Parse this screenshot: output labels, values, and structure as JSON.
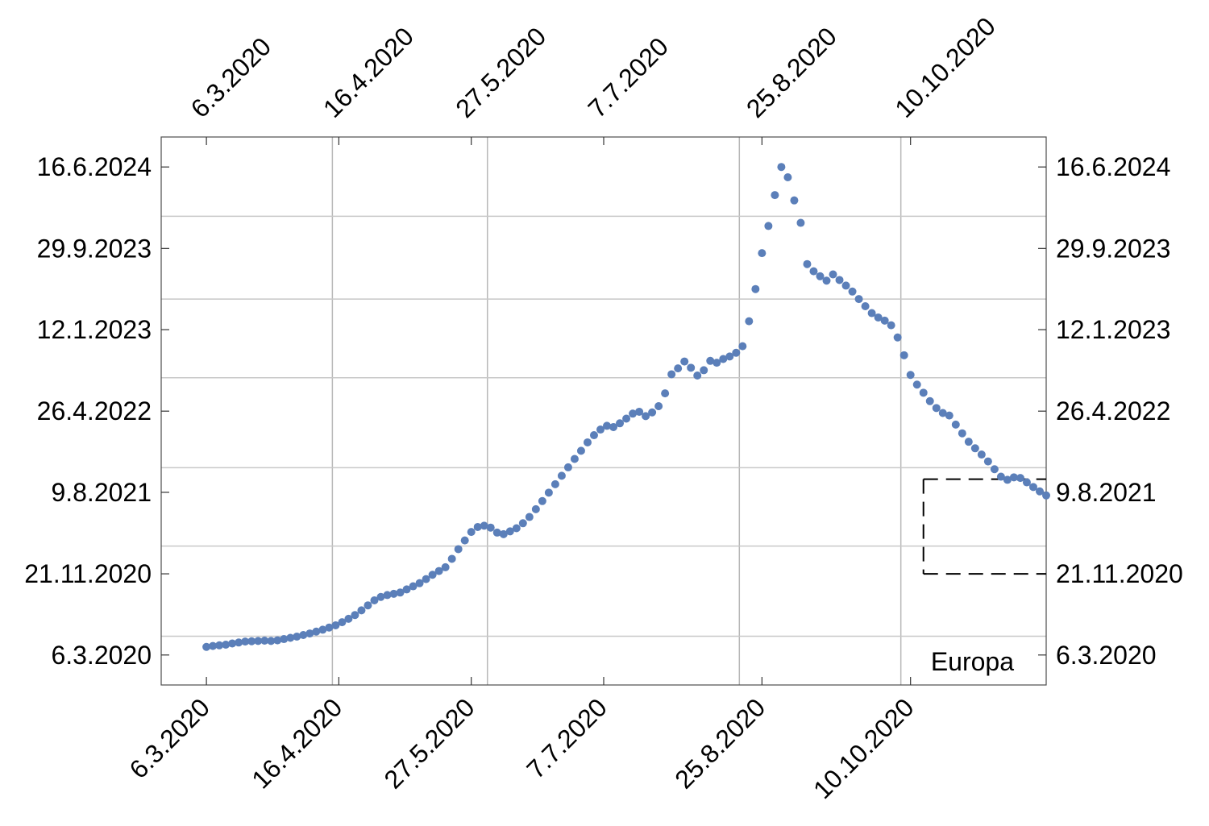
{
  "chart_data": {
    "type": "scatter",
    "title": "",
    "xlabel": "",
    "ylabel": "",
    "annotation": "Europa",
    "grid": true,
    "series_color": "#5b7fb9",
    "inset_box_color": "#000000",
    "x_axis": {
      "ticks": [
        "6.3.2020",
        "16.4.2020",
        "27.5.2020",
        "7.7.2020",
        "25.8.2020",
        "10.10.2020"
      ],
      "tick_dates": [
        "2020-03-06",
        "2020-04-16",
        "2020-05-27",
        "2020-07-07",
        "2020-08-25",
        "2020-10-10"
      ],
      "range": [
        "2020-02-21",
        "2020-11-21"
      ],
      "gridlines": [
        "2020-04-14",
        "2020-06-01",
        "2020-08-18",
        "2020-10-07"
      ]
    },
    "y_axis": {
      "ticks": [
        "6.3.2020",
        "21.11.2020",
        "9.8.2021",
        "26.4.2022",
        "12.1.2023",
        "29.9.2023",
        "16.6.2024"
      ],
      "tick_dates": [
        "2020-03-06",
        "2020-11-21",
        "2021-08-09",
        "2022-04-26",
        "2023-01-12",
        "2023-09-29",
        "2024-06-16"
      ],
      "range": [
        "2019-12-01",
        "2024-09-20"
      ],
      "gridlines": [
        "2020-05-05",
        "2021-02-18",
        "2021-10-27",
        "2022-08-11",
        "2023-04-20",
        "2024-01-10"
      ]
    },
    "inset_box": {
      "x_start": "2020-10-14",
      "y_range": [
        "2020-11-21",
        "2021-09-20"
      ]
    },
    "series": [
      {
        "points": [
          [
            "2020-03-06",
            "2020-04-01"
          ],
          [
            "2020-03-08",
            "2020-04-04"
          ],
          [
            "2020-03-10",
            "2020-04-06"
          ],
          [
            "2020-03-12",
            "2020-04-08"
          ],
          [
            "2020-03-14",
            "2020-04-12"
          ],
          [
            "2020-03-16",
            "2020-04-15"
          ],
          [
            "2020-03-18",
            "2020-04-18"
          ],
          [
            "2020-03-20",
            "2020-04-19"
          ],
          [
            "2020-03-22",
            "2020-04-20"
          ],
          [
            "2020-03-24",
            "2020-04-21"
          ],
          [
            "2020-03-26",
            "2020-04-20"
          ],
          [
            "2020-03-28",
            "2020-04-22"
          ],
          [
            "2020-03-30",
            "2020-04-26"
          ],
          [
            "2020-04-01",
            "2020-04-30"
          ],
          [
            "2020-04-03",
            "2020-05-04"
          ],
          [
            "2020-04-05",
            "2020-05-09"
          ],
          [
            "2020-04-07",
            "2020-05-14"
          ],
          [
            "2020-04-09",
            "2020-05-20"
          ],
          [
            "2020-04-11",
            "2020-05-26"
          ],
          [
            "2020-04-13",
            "2020-06-02"
          ],
          [
            "2020-04-15",
            "2020-06-09"
          ],
          [
            "2020-04-17",
            "2020-06-19"
          ],
          [
            "2020-04-19",
            "2020-06-30"
          ],
          [
            "2020-04-21",
            "2020-07-12"
          ],
          [
            "2020-04-23",
            "2020-07-27"
          ],
          [
            "2020-04-25",
            "2020-08-12"
          ],
          [
            "2020-04-27",
            "2020-08-28"
          ],
          [
            "2020-04-29",
            "2020-09-08"
          ],
          [
            "2020-05-01",
            "2020-09-14"
          ],
          [
            "2020-05-03",
            "2020-09-18"
          ],
          [
            "2020-05-05",
            "2020-09-22"
          ],
          [
            "2020-05-07",
            "2020-10-02"
          ],
          [
            "2020-05-09",
            "2020-10-12"
          ],
          [
            "2020-05-11",
            "2020-10-22"
          ],
          [
            "2020-05-13",
            "2020-11-04"
          ],
          [
            "2020-05-15",
            "2020-11-18"
          ],
          [
            "2020-05-17",
            "2020-11-30"
          ],
          [
            "2020-05-19",
            "2020-12-12"
          ],
          [
            "2020-05-21",
            "2021-01-08"
          ],
          [
            "2020-05-23",
            "2021-02-08"
          ],
          [
            "2020-05-25",
            "2021-03-08"
          ],
          [
            "2020-05-27",
            "2021-04-04"
          ],
          [
            "2020-05-29",
            "2021-04-20"
          ],
          [
            "2020-05-31",
            "2021-04-24"
          ],
          [
            "2020-06-02",
            "2021-04-18"
          ],
          [
            "2020-06-04",
            "2021-04-02"
          ],
          [
            "2020-06-06",
            "2021-03-28"
          ],
          [
            "2020-06-08",
            "2021-04-06"
          ],
          [
            "2020-06-10",
            "2021-04-16"
          ],
          [
            "2020-06-12",
            "2021-05-02"
          ],
          [
            "2020-06-14",
            "2021-05-22"
          ],
          [
            "2020-06-16",
            "2021-06-16"
          ],
          [
            "2020-06-18",
            "2021-07-12"
          ],
          [
            "2020-06-20",
            "2021-08-08"
          ],
          [
            "2020-06-22",
            "2021-09-04"
          ],
          [
            "2020-06-24",
            "2021-10-01"
          ],
          [
            "2020-06-26",
            "2021-10-28"
          ],
          [
            "2020-06-28",
            "2021-11-24"
          ],
          [
            "2020-06-30",
            "2021-12-20"
          ],
          [
            "2020-07-02",
            "2022-01-16"
          ],
          [
            "2020-07-04",
            "2022-02-08"
          ],
          [
            "2020-07-06",
            "2022-02-26"
          ],
          [
            "2020-07-08",
            "2022-03-10"
          ],
          [
            "2020-07-10",
            "2022-03-06"
          ],
          [
            "2020-07-12",
            "2022-03-18"
          ],
          [
            "2020-07-14",
            "2022-04-02"
          ],
          [
            "2020-07-16",
            "2022-04-18"
          ],
          [
            "2020-07-18",
            "2022-04-24"
          ],
          [
            "2020-07-20",
            "2022-04-10"
          ],
          [
            "2020-07-22",
            "2022-04-22"
          ],
          [
            "2020-07-24",
            "2022-05-12"
          ],
          [
            "2020-07-26",
            "2022-06-22"
          ],
          [
            "2020-07-28",
            "2022-08-22"
          ],
          [
            "2020-07-30",
            "2022-09-10"
          ],
          [
            "2020-08-01",
            "2022-10-02"
          ],
          [
            "2020-08-03",
            "2022-09-12"
          ],
          [
            "2020-08-05",
            "2022-08-18"
          ],
          [
            "2020-08-07",
            "2022-09-04"
          ],
          [
            "2020-08-09",
            "2022-10-04"
          ],
          [
            "2020-08-11",
            "2022-09-28"
          ],
          [
            "2020-08-13",
            "2022-10-10"
          ],
          [
            "2020-08-15",
            "2022-10-18"
          ],
          [
            "2020-08-17",
            "2022-10-30"
          ],
          [
            "2020-08-19",
            "2022-11-20"
          ],
          [
            "2020-08-21",
            "2023-02-08"
          ],
          [
            "2020-08-23",
            "2023-05-22"
          ],
          [
            "2020-08-25",
            "2023-09-14"
          ],
          [
            "2020-08-27",
            "2023-12-10"
          ],
          [
            "2020-08-29",
            "2024-03-18"
          ],
          [
            "2020-08-31",
            "2024-06-16"
          ],
          [
            "2020-09-02",
            "2024-05-14"
          ],
          [
            "2020-09-04",
            "2024-03-01"
          ],
          [
            "2020-09-06",
            "2023-12-20"
          ],
          [
            "2020-09-08",
            "2023-08-10"
          ],
          [
            "2020-09-10",
            "2023-07-18"
          ],
          [
            "2020-09-12",
            "2023-07-02"
          ],
          [
            "2020-09-14",
            "2023-06-18"
          ],
          [
            "2020-09-16",
            "2023-07-08"
          ],
          [
            "2020-09-18",
            "2023-06-20"
          ],
          [
            "2020-09-20",
            "2023-06-02"
          ],
          [
            "2020-09-22",
            "2023-05-14"
          ],
          [
            "2020-09-24",
            "2023-04-20"
          ],
          [
            "2020-09-26",
            "2023-03-28"
          ],
          [
            "2020-09-28",
            "2023-03-06"
          ],
          [
            "2020-09-30",
            "2023-02-20"
          ],
          [
            "2020-10-02",
            "2023-02-10"
          ],
          [
            "2020-10-04",
            "2023-01-26"
          ],
          [
            "2020-10-06",
            "2022-12-18"
          ],
          [
            "2020-10-08",
            "2022-10-22"
          ],
          [
            "2020-10-10",
            "2022-08-20"
          ],
          [
            "2020-10-12",
            "2022-07-20"
          ],
          [
            "2020-10-14",
            "2022-06-24"
          ],
          [
            "2020-10-16",
            "2022-05-28"
          ],
          [
            "2020-10-18",
            "2022-05-06"
          ],
          [
            "2020-10-20",
            "2022-04-20"
          ],
          [
            "2020-10-22",
            "2022-04-12"
          ],
          [
            "2020-10-24",
            "2022-03-14"
          ],
          [
            "2020-10-26",
            "2022-02-14"
          ],
          [
            "2020-10-28",
            "2022-01-18"
          ],
          [
            "2020-10-30",
            "2021-12-28"
          ],
          [
            "2020-11-01",
            "2021-12-08"
          ],
          [
            "2020-11-03",
            "2021-11-16"
          ],
          [
            "2020-11-05",
            "2021-10-22"
          ],
          [
            "2020-11-07",
            "2021-09-28"
          ],
          [
            "2020-11-09",
            "2021-09-18"
          ],
          [
            "2020-11-11",
            "2021-09-26"
          ],
          [
            "2020-11-13",
            "2021-09-24"
          ],
          [
            "2020-11-15",
            "2021-09-10"
          ],
          [
            "2020-11-17",
            "2021-08-26"
          ],
          [
            "2020-11-19",
            "2021-08-12"
          ],
          [
            "2020-11-21",
            "2021-07-30"
          ]
        ]
      }
    ]
  }
}
